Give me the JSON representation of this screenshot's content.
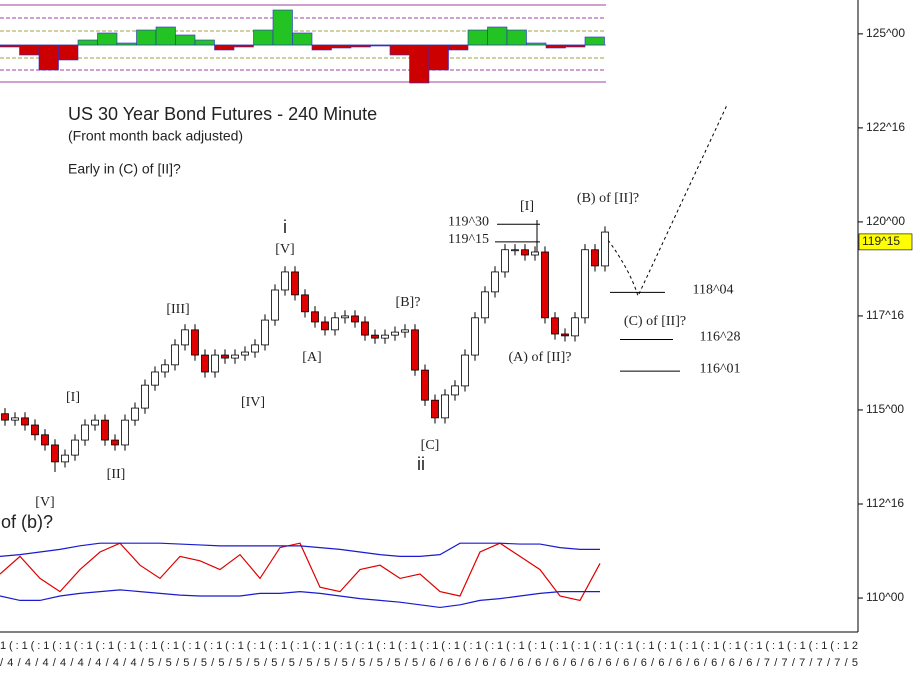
{
  "chart_data": [
    {
      "type": "candlestick",
      "title": "US 30 Year Bond Futures - 240 Minute",
      "subtitle": "(Front month back adjusted)",
      "annotations": [
        "Early in (C) of [II]?",
        "[V]",
        "c of (b)?",
        "[I]",
        "[II]",
        "[III]",
        "[IV]",
        "i",
        "[V]",
        "[A]",
        "[B]?",
        "[C]",
        "ii",
        "[I]",
        "(B) of [II]?",
        "(C) of [II]?",
        "(A) of [II]?"
      ],
      "open": [
        114.9,
        114.73,
        114.79,
        114.6,
        114.34,
        114.07,
        113.62,
        113.8,
        114.2,
        114.6,
        114.73,
        114.2,
        114.07,
        114.73,
        115.05,
        115.66,
        116.01,
        116.2,
        116.73,
        117.13,
        116.46,
        116.01,
        116.46,
        116.38,
        116.46,
        116.54,
        116.73,
        117.39,
        118.19,
        118.67,
        118.06,
        117.61,
        117.34,
        117.13,
        117.45,
        117.5,
        117.34,
        116.99,
        116.91,
        116.99,
        117.07,
        117.13,
        116.06,
        115.26,
        114.79,
        115.4,
        115.64,
        116.46,
        117.45,
        118.14,
        118.67,
        119.26,
        119.26,
        119.12,
        119.2,
        117.45,
        117.02,
        116.97,
        117.45,
        119.26,
        118.83
      ],
      "high": [
        115.05,
        114.94,
        114.94,
        114.75,
        114.49,
        114.22,
        113.95,
        114.35,
        114.75,
        114.88,
        114.88,
        114.35,
        114.88,
        115.2,
        115.81,
        116.16,
        116.35,
        116.88,
        117.28,
        117.28,
        116.61,
        116.61,
        116.61,
        116.61,
        116.69,
        116.88,
        117.54,
        118.34,
        118.82,
        118.82,
        118.21,
        117.76,
        117.49,
        117.6,
        117.65,
        117.65,
        117.49,
        117.14,
        117.14,
        117.22,
        117.28,
        117.28,
        116.21,
        115.41,
        115.55,
        115.79,
        116.61,
        117.6,
        118.29,
        118.82,
        119.41,
        119.41,
        119.41,
        119.35,
        119.35,
        117.6,
        117.17,
        117.6,
        119.41,
        119.41,
        119.88
      ],
      "low": [
        114.58,
        114.58,
        114.45,
        114.19,
        113.92,
        113.35,
        113.47,
        113.65,
        114.05,
        114.45,
        114.05,
        113.92,
        113.92,
        114.58,
        114.9,
        115.51,
        115.86,
        116.05,
        116.58,
        116.31,
        115.86,
        115.86,
        116.23,
        116.23,
        116.31,
        116.39,
        116.58,
        117.24,
        118.04,
        117.91,
        117.46,
        117.19,
        116.98,
        116.98,
        117.3,
        117.19,
        116.84,
        116.76,
        116.76,
        116.84,
        116.92,
        115.91,
        115.11,
        114.64,
        114.64,
        115.25,
        115.49,
        116.31,
        117.3,
        117.99,
        118.52,
        119.11,
        118.97,
        118.97,
        117.3,
        116.87,
        116.82,
        116.82,
        117.3,
        118.68,
        118.68
      ],
      "close": [
        114.73,
        114.79,
        114.6,
        114.34,
        114.07,
        113.62,
        113.8,
        114.2,
        114.6,
        114.73,
        114.2,
        114.07,
        114.73,
        115.05,
        115.66,
        116.01,
        116.2,
        116.73,
        117.13,
        116.46,
        116.01,
        116.46,
        116.38,
        116.46,
        116.54,
        116.73,
        117.39,
        118.19,
        118.67,
        118.06,
        117.61,
        117.34,
        117.13,
        117.45,
        117.5,
        117.34,
        116.99,
        116.91,
        116.99,
        117.07,
        117.13,
        116.06,
        115.26,
        114.79,
        115.4,
        115.64,
        116.46,
        117.45,
        118.14,
        118.67,
        119.26,
        119.26,
        119.12,
        119.2,
        117.45,
        117.02,
        116.97,
        117.45,
        119.26,
        118.83,
        119.73
      ],
      "up_color": "#ffffff",
      "down_color": "#e00000",
      "ylim": [
        109.15,
        125.9
      ],
      "yticks": [
        {
          "value": 110,
          "label": "110^00"
        },
        {
          "value": 112.5,
          "label": "112^16"
        },
        {
          "value": 115,
          "label": "115^00"
        },
        {
          "value": 117.5,
          "label": "117^16"
        },
        {
          "value": 120,
          "label": "120^00"
        },
        {
          "value": 122.5,
          "label": "122^16"
        },
        {
          "value": 125,
          "label": "125^00"
        }
      ],
      "current_price": {
        "value": 119.46875,
        "label": "119^15"
      },
      "levels": [
        {
          "value": 119.9375,
          "label": "119^30"
        },
        {
          "value": 119.46875,
          "label": "119^15"
        },
        {
          "value": 118.125,
          "label": "118^04"
        },
        {
          "value": 116.875,
          "label": "116^28"
        },
        {
          "value": 116.03125,
          "label": "116^01"
        }
      ],
      "x_axis_labels": [
        "1(:1(:1(:1(:1(:1(:1(:1(:1(:1(:1(:1(:1(:1(:1(:1(:1(:1(:1(:1(:1(:1(:1(:1(:1(:1(:1(:1(:1(:1(:1(:1(:1(:1(:1(:1(:1(:1(:1(:12",
        "/4/4/4/4/4/4/4/4/5/5/5/5/5/5/5/5/5/5/5/5/5/5/5/5/6/6/6/6/6/6/6/6/6/6/6/6/6/6/6/6/6/6/6/7/7/7/7/7/5"
      ]
    },
    {
      "type": "bar",
      "values": [
        -2,
        -10,
        -25,
        -15,
        5,
        12,
        2,
        15,
        18,
        10,
        5,
        -5,
        -2,
        15,
        35,
        12,
        -5,
        -3,
        -2,
        -1,
        -10,
        -38,
        -25,
        -5,
        15,
        18,
        15,
        2,
        -3,
        -2,
        8
      ],
      "colors": [
        "#22c322",
        "#cc0000"
      ],
      "ylim": [
        -40,
        40
      ]
    },
    {
      "type": "line",
      "series": [
        {
          "color": "#e00000",
          "values": [
            50,
            70,
            45,
            30,
            55,
            75,
            85,
            60,
            45,
            70,
            65,
            55,
            72,
            45,
            80,
            85,
            35,
            30,
            55,
            60,
            45,
            50,
            30,
            25,
            75,
            85,
            70,
            55,
            25,
            20,
            62
          ]
        },
        {
          "color": "#1a1ad0",
          "values": [
            70,
            72,
            75,
            78,
            82,
            85,
            85,
            85,
            85,
            84,
            83,
            82,
            82,
            82,
            82,
            82,
            80,
            78,
            75,
            72,
            70,
            70,
            72,
            85,
            85,
            85,
            84,
            84,
            80,
            78,
            78
          ]
        },
        {
          "color": "#1a1ad0",
          "values": [
            25,
            20,
            20,
            25,
            28,
            30,
            32,
            30,
            28,
            26,
            25,
            25,
            25,
            28,
            28,
            30,
            28,
            25,
            22,
            20,
            18,
            15,
            12,
            15,
            20,
            22,
            25,
            28,
            30,
            30,
            30
          ]
        }
      ],
      "ylim": [
        0,
        100
      ]
    }
  ]
}
